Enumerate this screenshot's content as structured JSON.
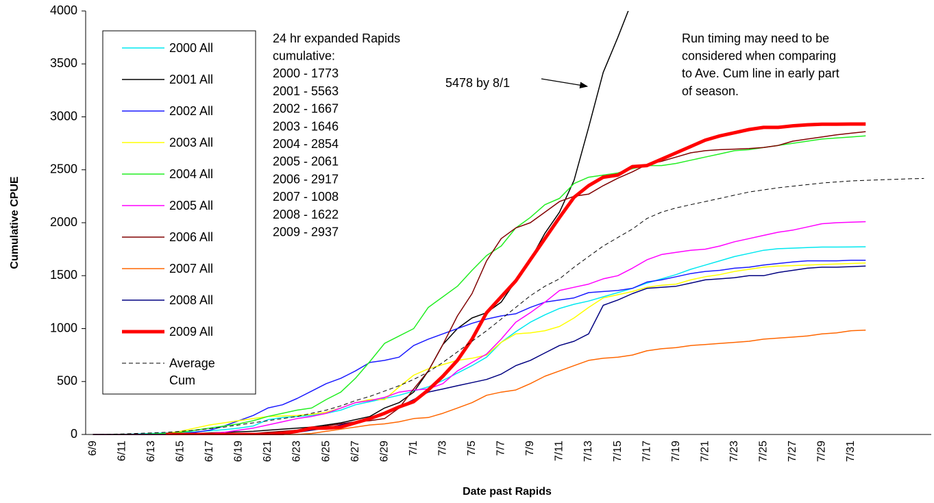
{
  "chart_data": {
    "type": "line",
    "ylabel": "Cumulative CPUE",
    "xlabel": "Date past Rapids",
    "ylim": [
      0,
      4000
    ],
    "yticks": [
      0,
      500,
      1000,
      1500,
      2000,
      2500,
      3000,
      3500,
      4000
    ],
    "grid": false,
    "categories": [
      "6/9",
      null,
      "6/11",
      null,
      "6/13",
      null,
      "6/15",
      null,
      "6/17",
      null,
      "6/19",
      null,
      "6/21",
      null,
      "6/23",
      null,
      "6/25",
      null,
      "6/27",
      null,
      "6/29",
      null,
      "7/1",
      null,
      "7/3",
      null,
      "7/5",
      null,
      "7/7",
      null,
      "7/9",
      null,
      "7/11",
      null,
      "7/13",
      null,
      "7/15",
      null,
      "7/17",
      null,
      "7/19",
      null,
      "7/21",
      null,
      "7/23",
      null,
      "7/25",
      null,
      "7/27",
      null,
      "7/29",
      null,
      "7/31",
      null,
      null,
      null,
      null,
      null
    ],
    "series": [
      {
        "name": "2000 All",
        "color": "#00e8f0",
        "line_style": "solid",
        "values": [
          0,
          0,
          2,
          5,
          10,
          15,
          20,
          25,
          35,
          45,
          60,
          80,
          140,
          160,
          170,
          180,
          200,
          230,
          280,
          310,
          340,
          370,
          410,
          450,
          510,
          580,
          650,
          730,
          870,
          970,
          1060,
          1130,
          1190,
          1230,
          1260,
          1300,
          1340,
          1380,
          1430,
          1470,
          1510,
          1560,
          1600,
          1640,
          1680,
          1710,
          1740,
          1755,
          1760,
          1765,
          1770,
          1770,
          1771,
          1773,
          null,
          null,
          null,
          null
        ]
      },
      {
        "name": "2001 All",
        "color": "#000000",
        "line_style": "solid",
        "values": [
          0,
          0,
          0,
          0,
          0,
          2,
          5,
          10,
          15,
          20,
          25,
          30,
          40,
          50,
          60,
          70,
          90,
          110,
          140,
          170,
          250,
          300,
          400,
          600,
          850,
          1000,
          1100,
          1150,
          1250,
          1450,
          1650,
          1900,
          2100,
          2400,
          2900,
          3420,
          3750,
          4100,
          null,
          null,
          null,
          null,
          null,
          null,
          null,
          null,
          null,
          null,
          null,
          null,
          null,
          null,
          null,
          null,
          null,
          null,
          null,
          null
        ]
      },
      {
        "name": "2002 All",
        "color": "#1a1aff",
        "line_style": "solid",
        "values": [
          0,
          0,
          0,
          0,
          0,
          5,
          10,
          20,
          40,
          80,
          130,
          180,
          250,
          280,
          340,
          410,
          480,
          530,
          600,
          680,
          700,
          730,
          840,
          900,
          950,
          1000,
          1050,
          1090,
          1120,
          1140,
          1200,
          1250,
          1270,
          1290,
          1340,
          1350,
          1360,
          1380,
          1440,
          1460,
          1490,
          1520,
          1540,
          1550,
          1570,
          1580,
          1600,
          1615,
          1630,
          1640,
          1640,
          1640,
          1645,
          1645,
          null,
          null,
          null,
          null
        ]
      },
      {
        "name": "2003 All",
        "color": "#ffff00",
        "line_style": "solid",
        "values": [
          0,
          0,
          0,
          0,
          0,
          10,
          30,
          60,
          90,
          110,
          130,
          150,
          170,
          175,
          180,
          190,
          210,
          250,
          300,
          330,
          330,
          450,
          560,
          620,
          660,
          700,
          720,
          750,
          870,
          950,
          960,
          980,
          1020,
          1100,
          1200,
          1290,
          1320,
          1350,
          1390,
          1410,
          1420,
          1460,
          1490,
          1510,
          1540,
          1560,
          1580,
          1590,
          1595,
          1600,
          1605,
          1610,
          1615,
          1620,
          null,
          null,
          null,
          null
        ]
      },
      {
        "name": "2004 All",
        "color": "#22ee22",
        "line_style": "solid",
        "values": [
          0,
          0,
          0,
          0,
          5,
          10,
          20,
          40,
          60,
          80,
          100,
          130,
          170,
          200,
          230,
          250,
          330,
          400,
          530,
          690,
          860,
          930,
          1000,
          1200,
          1300,
          1400,
          1550,
          1690,
          1780,
          1950,
          2050,
          2170,
          2230,
          2370,
          2430,
          2450,
          2470,
          2510,
          2540,
          2540,
          2560,
          2590,
          2620,
          2650,
          2680,
          2690,
          2710,
          2730,
          2750,
          2770,
          2790,
          2800,
          2810,
          2820,
          null,
          null,
          null,
          null
        ]
      },
      {
        "name": "2005 All",
        "color": "#ff00ff",
        "line_style": "solid",
        "values": [
          0,
          0,
          0,
          0,
          0,
          0,
          0,
          5,
          10,
          20,
          40,
          60,
          90,
          120,
          150,
          170,
          200,
          250,
          300,
          320,
          350,
          400,
          420,
          430,
          480,
          600,
          680,
          760,
          900,
          1060,
          1150,
          1250,
          1360,
          1390,
          1420,
          1470,
          1500,
          1570,
          1650,
          1700,
          1720,
          1740,
          1750,
          1780,
          1820,
          1850,
          1880,
          1910,
          1930,
          1960,
          1990,
          2000,
          2005,
          2010,
          null,
          null,
          null,
          null
        ]
      },
      {
        "name": "2006 All",
        "color": "#800000",
        "line_style": "solid",
        "values": [
          0,
          0,
          0,
          0,
          0,
          0,
          0,
          0,
          0,
          0,
          5,
          10,
          20,
          30,
          40,
          60,
          80,
          100,
          120,
          130,
          150,
          250,
          430,
          600,
          850,
          1120,
          1330,
          1640,
          1850,
          1950,
          2000,
          2100,
          2200,
          2250,
          2270,
          2350,
          2420,
          2480,
          2550,
          2580,
          2620,
          2660,
          2680,
          2690,
          2695,
          2700,
          2710,
          2730,
          2770,
          2790,
          2810,
          2830,
          2845,
          2860,
          null,
          null,
          null,
          null
        ]
      },
      {
        "name": "2007 All",
        "color": "#ff6600",
        "line_style": "solid",
        "values": [
          0,
          0,
          0,
          0,
          0,
          0,
          0,
          0,
          0,
          0,
          0,
          0,
          0,
          0,
          0,
          10,
          30,
          50,
          70,
          90,
          100,
          120,
          150,
          160,
          200,
          250,
          300,
          370,
          400,
          420,
          480,
          550,
          600,
          650,
          700,
          720,
          730,
          750,
          790,
          810,
          820,
          840,
          850,
          860,
          870,
          880,
          900,
          910,
          920,
          930,
          950,
          960,
          980,
          985,
          null,
          null,
          null,
          null
        ]
      },
      {
        "name": "2008 All",
        "color": "#000080",
        "line_style": "solid",
        "values": [
          0,
          0,
          0,
          0,
          0,
          0,
          0,
          0,
          0,
          0,
          0,
          0,
          0,
          0,
          20,
          40,
          60,
          90,
          120,
          160,
          200,
          260,
          330,
          400,
          430,
          460,
          490,
          520,
          570,
          650,
          700,
          770,
          840,
          880,
          950,
          1220,
          1270,
          1330,
          1380,
          1390,
          1400,
          1430,
          1460,
          1470,
          1480,
          1500,
          1500,
          1530,
          1550,
          1570,
          1580,
          1580,
          1585,
          1590,
          null,
          null,
          null,
          null
        ]
      },
      {
        "name": "2009 All",
        "color": "#ff0000",
        "line_style": "bold",
        "values": [
          null,
          null,
          null,
          null,
          null,
          0,
          0,
          0,
          0,
          0,
          0,
          0,
          0,
          10,
          30,
          60,
          60,
          70,
          110,
          150,
          200,
          260,
          310,
          420,
          550,
          700,
          900,
          1150,
          1300,
          1450,
          1650,
          1850,
          2050,
          2240,
          2350,
          2430,
          2450,
          2530,
          2540,
          2600,
          2660,
          2720,
          2780,
          2820,
          2850,
          2880,
          2900,
          2900,
          2915,
          2925,
          2930,
          2930,
          2932,
          2932,
          null,
          null,
          null,
          null
        ]
      },
      {
        "name": "Average Cum",
        "color": "#000000",
        "line_style": "dashed",
        "values": [
          0,
          2,
          5,
          10,
          15,
          20,
          30,
          40,
          55,
          70,
          90,
          110,
          130,
          150,
          170,
          200,
          230,
          270,
          320,
          360,
          410,
          460,
          520,
          590,
          680,
          780,
          880,
          980,
          1090,
          1200,
          1310,
          1400,
          1470,
          1580,
          1680,
          1780,
          1860,
          1940,
          2040,
          2100,
          2140,
          2170,
          2200,
          2230,
          2260,
          2290,
          2310,
          2330,
          2345,
          2360,
          2375,
          2385,
          2395,
          2400,
          2405,
          2410,
          2415,
          2418
        ]
      }
    ],
    "rapids_note": [
      "24 hr expanded Rapids",
      "cumulative:",
      "2000 - 1773",
      "2001 - 5563",
      "2002 - 1667",
      "2003 - 1646",
      "2004 - 2854",
      "2005 - 2061",
      "2006 - 2917",
      "2007 - 1008",
      "2008 - 1622",
      "2009 - 2937"
    ],
    "arrow_note": "5478 by 8/1",
    "timing_note": [
      "Run timing may need to be",
      "considered when comparing",
      "to Ave. Cum line in early part",
      "of season."
    ]
  }
}
